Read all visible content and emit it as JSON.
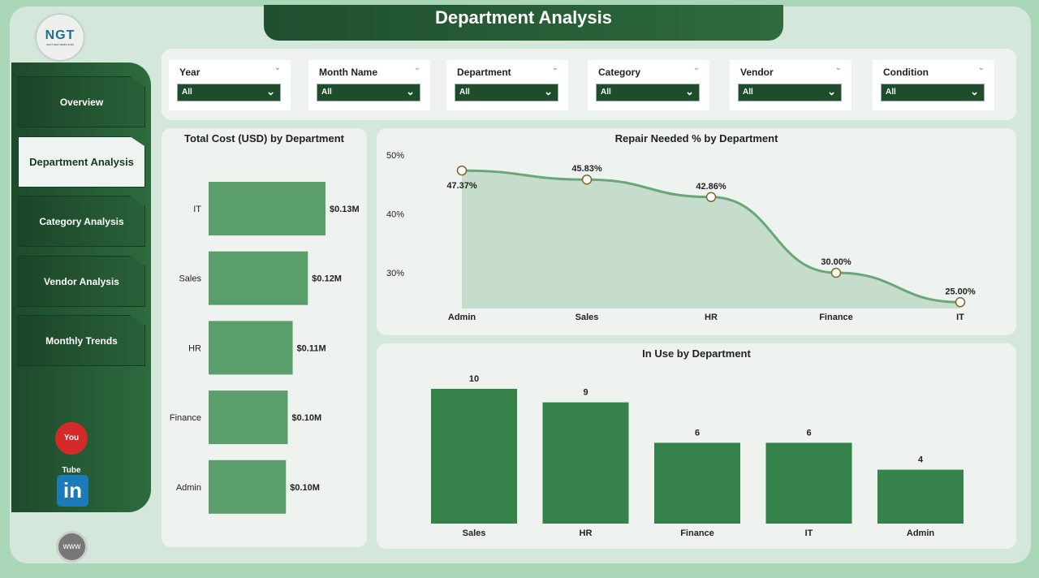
{
  "title": "Department Analysis",
  "logo": {
    "text": "NGT",
    "subtitle": "NEXT GEN TEMPLATES"
  },
  "nav": [
    {
      "label": "Overview"
    },
    {
      "label": "Department Analysis",
      "active": true
    },
    {
      "label": "Category Analysis"
    },
    {
      "label": "Vendor Analysis"
    },
    {
      "label": "Monthly Trends"
    }
  ],
  "social": {
    "youtube": "You Tube",
    "linkedin": "in",
    "web": "www"
  },
  "filters": [
    {
      "label": "Year",
      "value": "All"
    },
    {
      "label": "Month Name",
      "value": "All"
    },
    {
      "label": "Department",
      "value": "All"
    },
    {
      "label": "Category",
      "value": "All"
    },
    {
      "label": "Vendor",
      "value": "All"
    },
    {
      "label": "Condition",
      "value": "All"
    }
  ],
  "colors": {
    "dark": "#1f4d2c",
    "bar_light": "#5a9e6b",
    "bar_dark": "#35834a",
    "area": "#c6ddcc",
    "line": "#6aa67a"
  },
  "chart_data": [
    {
      "type": "bar",
      "orientation": "horizontal",
      "title": "Total Cost (USD) by Department",
      "categories": [
        "IT",
        "Sales",
        "HR",
        "Finance",
        "Admin"
      ],
      "values": [
        0.13,
        0.12,
        0.11,
        0.1,
        0.1
      ],
      "labels": [
        "$0.13M",
        "$0.12M",
        "$0.11M",
        "$0.10M",
        "$0.10M"
      ],
      "unit": "USD millions"
    },
    {
      "type": "area",
      "title": "Repair Needed % by Department",
      "categories": [
        "Admin",
        "Sales",
        "HR",
        "Finance",
        "IT"
      ],
      "values": [
        47.37,
        45.83,
        42.86,
        30.0,
        25.0
      ],
      "labels": [
        "47.37%",
        "45.83%",
        "42.86%",
        "30.00%",
        "25.00%"
      ],
      "yticks": [
        "50%",
        "40%",
        "30%"
      ],
      "ylim": [
        24.6,
        50
      ]
    },
    {
      "type": "bar",
      "title": "In Use by Department",
      "categories": [
        "Sales",
        "HR",
        "Finance",
        "IT",
        "Admin"
      ],
      "values": [
        10,
        9,
        6,
        6,
        4
      ],
      "ylim": [
        0,
        10
      ]
    }
  ]
}
